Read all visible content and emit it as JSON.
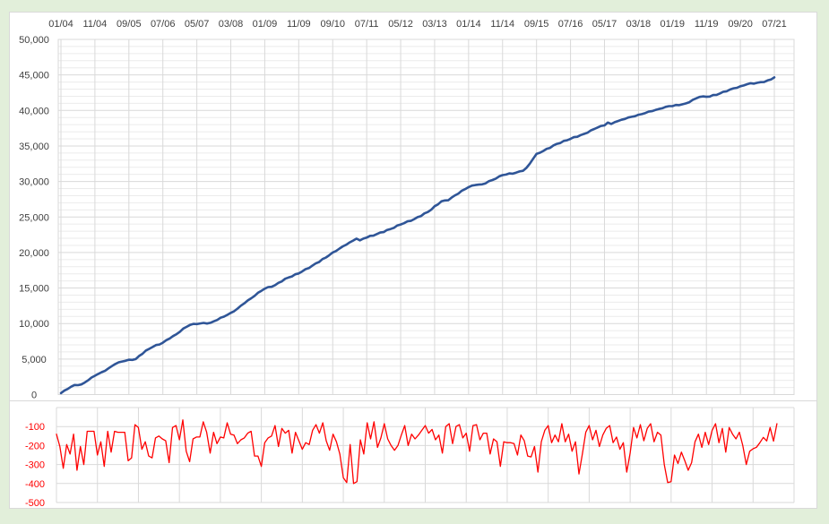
{
  "page": {
    "background_color": "#e2efda",
    "panel_background": "#ffffff",
    "panel_border_color": "#d9d9d9",
    "gridline_major_color": "#d9d9d9",
    "gridline_minor_color": "#ebebeb",
    "axis_label_color": "#404040"
  },
  "chart_data": [
    {
      "id": "cumulative",
      "type": "line",
      "series_color": "#2f5597",
      "x_tick_labels": [
        "01/04",
        "11/04",
        "09/05",
        "07/06",
        "05/07",
        "03/08",
        "01/09",
        "11/09",
        "09/10",
        "07/11",
        "05/12",
        "03/13",
        "01/14",
        "11/14",
        "09/15",
        "07/16",
        "05/17",
        "03/18",
        "01/19",
        "11/19",
        "09/20",
        "07/21"
      ],
      "months_per_tick": 10,
      "total_months": 211,
      "ylim": [
        0,
        50000
      ],
      "y_major_step": 5000,
      "y_minor_step": 1000,
      "y_tick_labels": [
        "50,000",
        "45,000",
        "40,000",
        "35,000",
        "30,000",
        "25,000",
        "20,000",
        "15,000",
        "10,000",
        "5,000",
        "0"
      ],
      "anchors": [
        [
          0,
          200
        ],
        [
          2,
          800
        ],
        [
          4,
          1350
        ],
        [
          6,
          1430
        ],
        [
          8,
          2000
        ],
        [
          10,
          2650
        ],
        [
          12,
          3150
        ],
        [
          14,
          3700
        ],
        [
          16,
          4300
        ],
        [
          18,
          4650
        ],
        [
          20,
          4900
        ],
        [
          22,
          5000
        ],
        [
          25,
          6200
        ],
        [
          27,
          6700
        ],
        [
          30,
          7300
        ],
        [
          32,
          7900
        ],
        [
          34,
          8500
        ],
        [
          36,
          9300
        ],
        [
          38,
          9800
        ],
        [
          39,
          9950
        ],
        [
          44,
          10100
        ],
        [
          46,
          10500
        ],
        [
          50,
          11500
        ],
        [
          52,
          12100
        ],
        [
          54,
          12850
        ],
        [
          57,
          13900
        ],
        [
          59,
          14600
        ],
        [
          60,
          14900
        ],
        [
          63,
          15400
        ],
        [
          66,
          16300
        ],
        [
          70,
          17050
        ],
        [
          74,
          18150
        ],
        [
          78,
          19300
        ],
        [
          80,
          20000
        ],
        [
          84,
          21100
        ],
        [
          87,
          21950
        ],
        [
          88,
          21700
        ],
        [
          89,
          21950
        ],
        [
          93,
          22600
        ],
        [
          97,
          23300
        ],
        [
          100,
          23950
        ],
        [
          104,
          24700
        ],
        [
          108,
          25700
        ],
        [
          112,
          27200
        ],
        [
          114,
          27350
        ],
        [
          118,
          28700
        ],
        [
          120,
          29200
        ],
        [
          122,
          29500
        ],
        [
          124,
          29600
        ],
        [
          128,
          30400
        ],
        [
          130,
          30900
        ],
        [
          134,
          31250
        ],
        [
          136,
          31500
        ],
        [
          137,
          31900
        ],
        [
          138,
          32500
        ],
        [
          139,
          33200
        ],
        [
          140,
          33900
        ],
        [
          142,
          34300
        ],
        [
          146,
          35300
        ],
        [
          150,
          36000
        ],
        [
          154,
          36700
        ],
        [
          158,
          37600
        ],
        [
          160,
          37900
        ],
        [
          161,
          38300
        ],
        [
          162,
          38100
        ],
        [
          163,
          38350
        ],
        [
          166,
          38800
        ],
        [
          170,
          39400
        ],
        [
          174,
          39900
        ],
        [
          177,
          40300
        ],
        [
          179,
          40600
        ],
        [
          182,
          40750
        ],
        [
          184,
          41000
        ],
        [
          187,
          41700
        ],
        [
          188,
          41900
        ],
        [
          191,
          41950
        ],
        [
          194,
          42400
        ],
        [
          197,
          42950
        ],
        [
          200,
          43400
        ],
        [
          202,
          43700
        ],
        [
          205,
          43900
        ],
        [
          207,
          44000
        ],
        [
          209,
          44350
        ],
        [
          210,
          44650
        ]
      ]
    },
    {
      "id": "monthly",
      "type": "line",
      "series_color": "#ff0000",
      "ylim": [
        -500,
        0
      ],
      "y_tick_labels": [
        "-100",
        "-200",
        "-300",
        "-400",
        "-500"
      ],
      "x_year_gridlines": 18,
      "values": [
        -140,
        -205,
        -320,
        -195,
        -245,
        -140,
        -330,
        -205,
        -300,
        -125,
        -125,
        -125,
        -250,
        -180,
        -310,
        -125,
        -235,
        -125,
        -130,
        -130,
        -130,
        -280,
        -265,
        -90,
        -105,
        -220,
        -180,
        -255,
        -265,
        -160,
        -150,
        -165,
        -175,
        -290,
        -105,
        -95,
        -170,
        -65,
        -230,
        -285,
        -165,
        -155,
        -155,
        -75,
        -130,
        -240,
        -130,
        -190,
        -155,
        -160,
        -80,
        -140,
        -145,
        -190,
        -170,
        -160,
        -135,
        -125,
        -255,
        -255,
        -310,
        -185,
        -160,
        -150,
        -95,
        -205,
        -110,
        -135,
        -120,
        -240,
        -130,
        -175,
        -220,
        -185,
        -195,
        -120,
        -90,
        -135,
        -80,
        -175,
        -225,
        -140,
        -180,
        -245,
        -370,
        -395,
        -195,
        -400,
        -390,
        -170,
        -245,
        -80,
        -165,
        -75,
        -210,
        -160,
        -85,
        -165,
        -200,
        -225,
        -200,
        -145,
        -95,
        -200,
        -140,
        -165,
        -145,
        -120,
        -95,
        -135,
        -115,
        -170,
        -145,
        -240,
        -100,
        -85,
        -190,
        -100,
        -90,
        -160,
        -135,
        -230,
        -95,
        -90,
        -170,
        -135,
        -135,
        -245,
        -165,
        -180,
        -310,
        -180,
        -185,
        -185,
        -190,
        -250,
        -145,
        -175,
        -255,
        -260,
        -205,
        -340,
        -180,
        -120,
        -95,
        -185,
        -145,
        -180,
        -85,
        -180,
        -140,
        -230,
        -180,
        -350,
        -245,
        -130,
        -95,
        -170,
        -120,
        -205,
        -145,
        -110,
        -95,
        -185,
        -155,
        -220,
        -185,
        -340,
        -240,
        -105,
        -160,
        -90,
        -175,
        -110,
        -85,
        -180,
        -130,
        -145,
        -300,
        -395,
        -390,
        -250,
        -295,
        -235,
        -280,
        -330,
        -290,
        -180,
        -140,
        -210,
        -130,
        -195,
        -120,
        -85,
        -185,
        -110,
        -235,
        -105,
        -140,
        -165,
        -130,
        -200,
        -300,
        -230,
        -217,
        -209,
        -185,
        -157,
        -176,
        -105,
        -177,
        -85
      ]
    }
  ]
}
